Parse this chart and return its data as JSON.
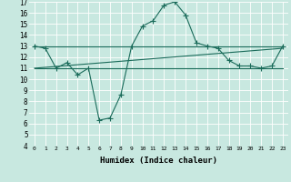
{
  "xlabel": "Humidex (Indice chaleur)",
  "bg_color": "#c8e8e0",
  "grid_color": "#ffffff",
  "line_color": "#1a6b5a",
  "xlim": [
    -0.5,
    23.5
  ],
  "ylim": [
    4,
    17
  ],
  "xticks": [
    0,
    1,
    2,
    3,
    4,
    5,
    6,
    7,
    8,
    9,
    10,
    11,
    12,
    13,
    14,
    15,
    16,
    17,
    18,
    19,
    20,
    21,
    22,
    23
  ],
  "yticks": [
    4,
    5,
    6,
    7,
    8,
    9,
    10,
    11,
    12,
    13,
    14,
    15,
    16,
    17
  ],
  "main_x": [
    0,
    1,
    2,
    3,
    4,
    5,
    6,
    7,
    8,
    9,
    10,
    11,
    12,
    13,
    14,
    15,
    16,
    17,
    18,
    19,
    20,
    21,
    22,
    23
  ],
  "main_y": [
    13,
    12.8,
    11.0,
    11.5,
    10.4,
    11.0,
    6.3,
    6.5,
    8.6,
    13.0,
    14.8,
    15.3,
    16.7,
    17.0,
    15.8,
    13.3,
    13.0,
    12.8,
    11.7,
    11.2,
    11.2,
    11.0,
    11.2,
    13.0
  ],
  "line1_x": [
    0,
    23
  ],
  "line1_y": [
    13.0,
    13.0
  ],
  "line2_x": [
    0,
    23
  ],
  "line2_y": [
    11.0,
    11.0
  ],
  "line3_x": [
    0,
    23
  ],
  "line3_y": [
    11.0,
    12.8
  ],
  "marker_size": 4,
  "line_width": 0.8,
  "tick_fontsize_x": 4.5,
  "tick_fontsize_y": 5.5,
  "xlabel_fontsize": 6.5
}
